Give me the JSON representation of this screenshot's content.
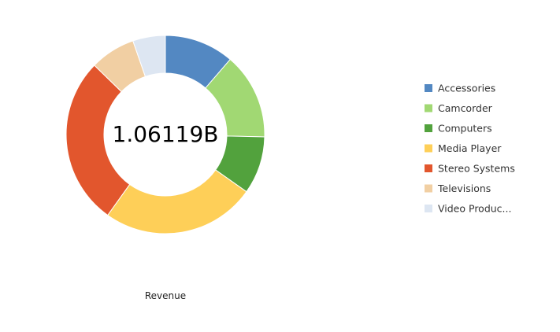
{
  "chart_data": {
    "type": "pie",
    "variant": "donut",
    "center_label": "1.06119B",
    "xlabel": "Revenue",
    "legend_position": "right",
    "categories": [
      "Accessories",
      "Camcorder",
      "Computers",
      "Media Player",
      "Stereo Systems",
      "Televisions",
      "Video Produc..."
    ],
    "values": [
      0.1175,
      0.1459,
      0.0977,
      0.2605,
      0.2847,
      0.0767,
      0.0551
    ],
    "value_unit": "share of total",
    "colors": [
      "#5388c2",
      "#a1d873",
      "#52a23d",
      "#fecf58",
      "#e2562d",
      "#f1cfa3",
      "#dde6f2"
    ]
  }
}
